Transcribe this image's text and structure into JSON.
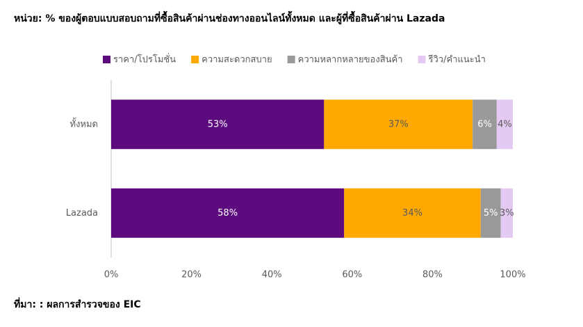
{
  "chart_data": {
    "type": "stacked-barh",
    "title": "หน่วย: % ของผู้ตอบแบบสอบถามที่ซื้อสินค้าผ่านช่องทางออนไลน์ทั้งหมด และผู้ที่ซื้อสินค้าผ่าน Lazada",
    "source": "ที่มา: : ผลการสำรวจของ EIC",
    "categories": [
      "ทั้งหมด",
      "Lazada"
    ],
    "series": [
      {
        "name": "ราคา/โปรโมชั่น",
        "color": "#5c0b7e",
        "label_color": "#ffffff",
        "values": [
          53,
          58
        ],
        "value_labels": [
          "53%",
          "58%"
        ]
      },
      {
        "name": "ความสะดวกสบาย",
        "color": "#ffa800",
        "label_color": "#595959",
        "values": [
          37,
          34
        ],
        "value_labels": [
          "37%",
          "34%"
        ]
      },
      {
        "name": "ความหลากหลายของสินค้า",
        "color": "#999999",
        "label_color": "#ffffff",
        "values": [
          6,
          5
        ],
        "value_labels": [
          "6%",
          "5%"
        ]
      },
      {
        "name": "รีวิว/คำแนะนำ",
        "color": "#e4caf2",
        "label_color": "#595959",
        "values": [
          4,
          3
        ],
        "value_labels": [
          "4%",
          "3%"
        ]
      }
    ],
    "xlim": [
      0,
      100
    ],
    "xticks": [
      {
        "value": 0,
        "label": "0%"
      },
      {
        "value": 20,
        "label": "20%"
      },
      {
        "value": 40,
        "label": "40%"
      },
      {
        "value": 60,
        "label": "60%"
      },
      {
        "value": 80,
        "label": "80%"
      },
      {
        "value": 100,
        "label": "100%"
      }
    ],
    "legend": "top"
  }
}
